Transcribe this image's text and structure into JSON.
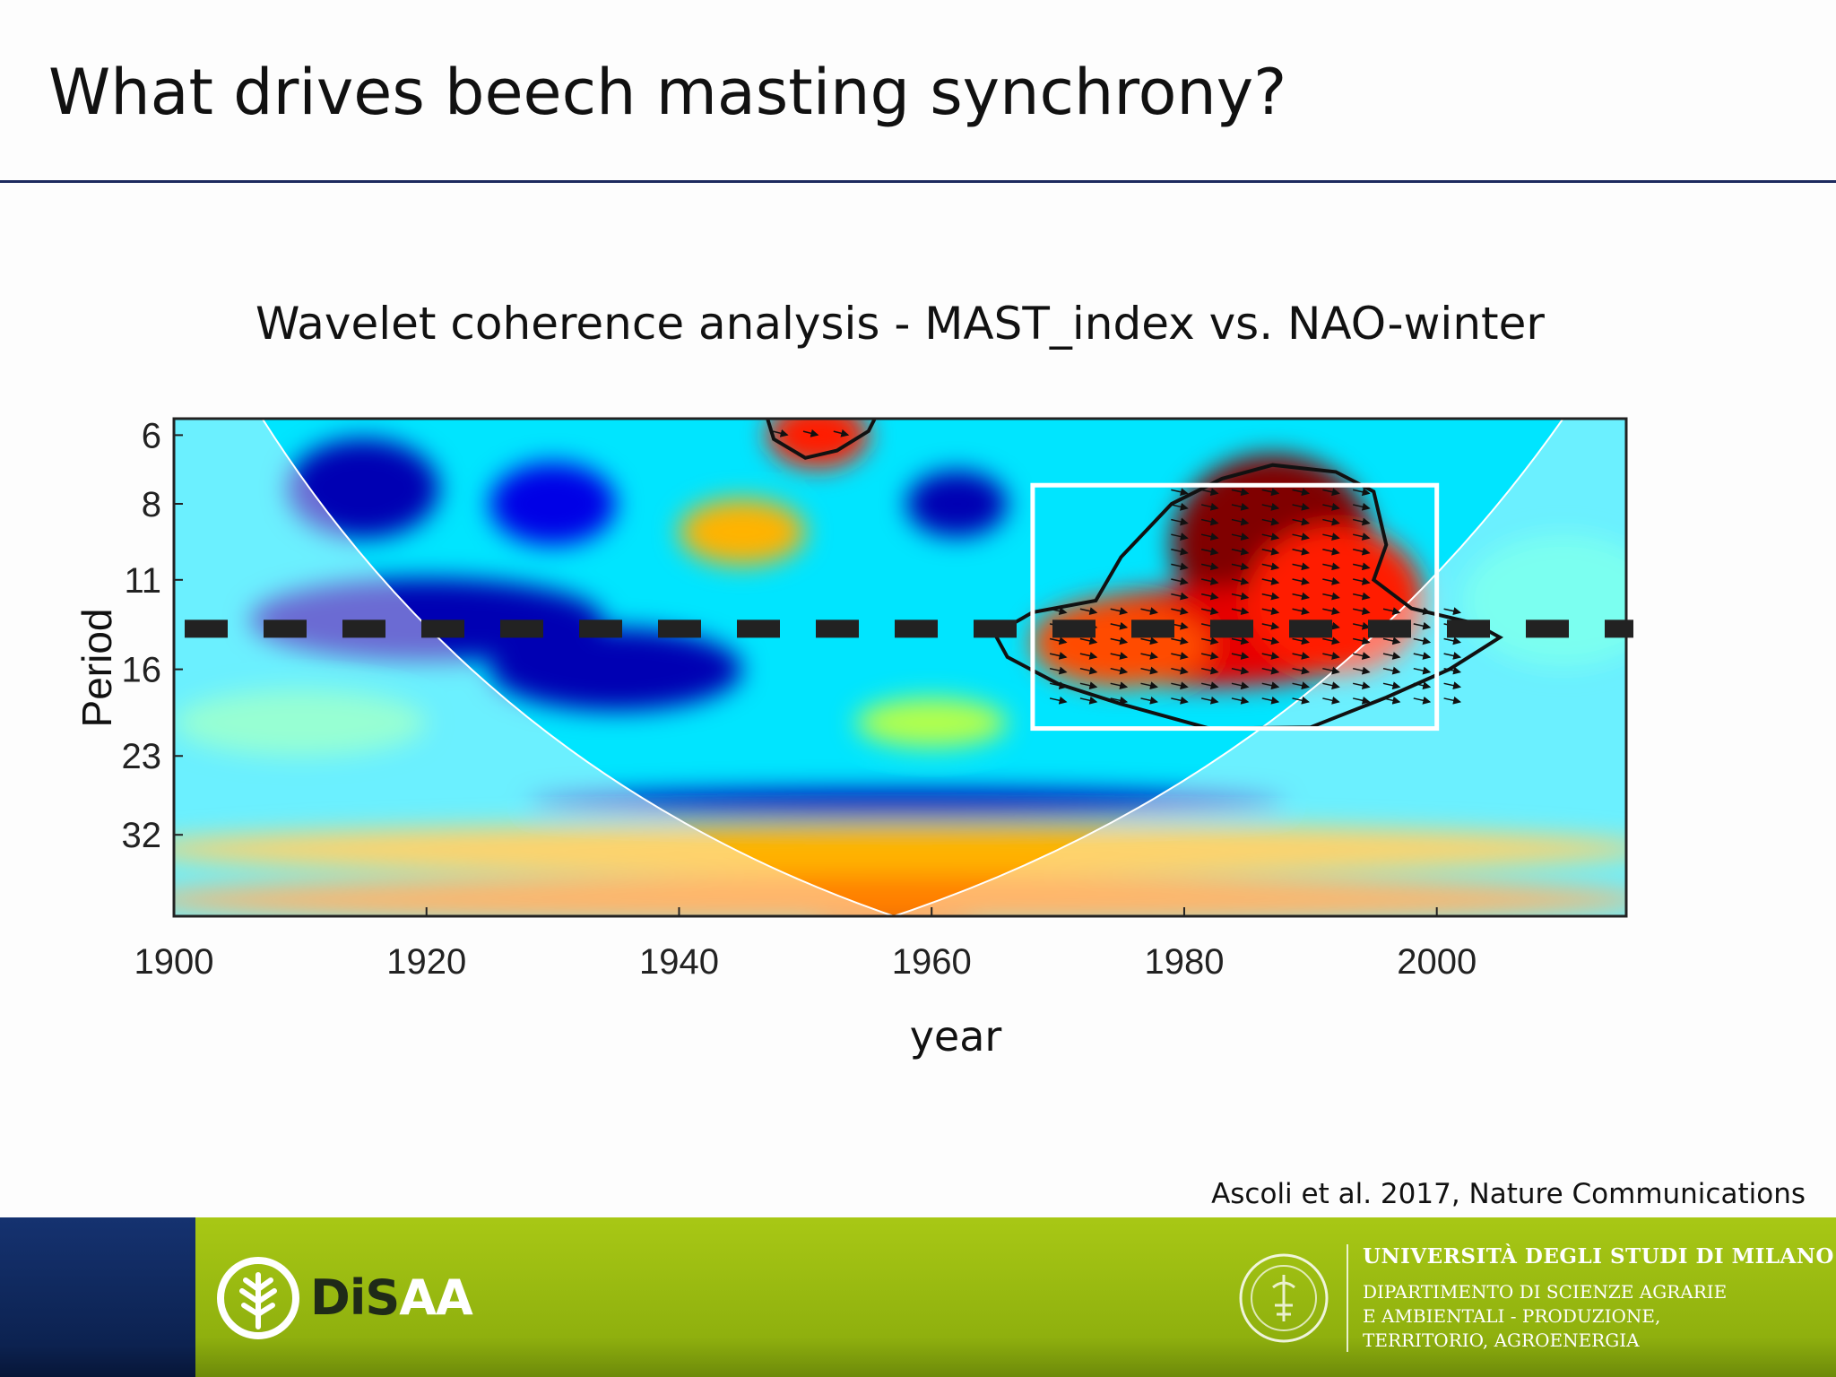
{
  "slide": {
    "title": "What drives beech masting synchrony?",
    "citation": "Ascoli et al. 2017, Nature Communications"
  },
  "chart_data": {
    "type": "heatmap",
    "title": "Wavelet coherence analysis - MAST_index vs. NAO-winter",
    "xlabel": "year",
    "ylabel": "Period",
    "xlim": [
      1900,
      2015
    ],
    "x_ticks": [
      1900,
      1920,
      1940,
      1960,
      1980,
      2000
    ],
    "y_ticks": [
      6,
      8,
      11,
      16,
      23,
      32
    ],
    "y_scale": "log2",
    "ylim": [
      5.6,
      45
    ],
    "colormap": "jet",
    "dashed_reference_period": 13.5,
    "highlight_box": {
      "x_from": 1968,
      "x_to": 2000,
      "period_from": 7.4,
      "period_to": 20.5
    },
    "significant_regions": [
      {
        "x_from": 1965,
        "x_to": 2005,
        "period_from": 7.0,
        "period_to": 20.5,
        "peak_year": 1987,
        "peak_period": 9.5
      },
      {
        "x_from": 1947,
        "x_to": 1955,
        "period_from": 5.6,
        "period_to": 6.6
      }
    ],
    "coherence_blobs": [
      {
        "year": 1987,
        "period": 9.5,
        "coherence": 1.0,
        "ry": 8,
        "rp": 0.55
      },
      {
        "year": 1982,
        "period": 14.0,
        "coherence": 0.9,
        "ry": 14,
        "rp": 0.3
      },
      {
        "year": 1992,
        "period": 12.0,
        "coherence": 0.85,
        "ry": 7,
        "rp": 0.45
      },
      {
        "year": 1975,
        "period": 14.5,
        "coherence": 0.8,
        "ry": 7,
        "rp": 0.25
      },
      {
        "year": 1951,
        "period": 6.0,
        "coherence": 0.85,
        "ry": 4,
        "rp": 0.2
      },
      {
        "year": 1945,
        "period": 9.0,
        "coherence": 0.7,
        "ry": 5,
        "rp": 0.2
      },
      {
        "year": 1957,
        "period": 40.0,
        "coherence": 0.92,
        "ry": 10,
        "rp": 0.3
      },
      {
        "year": 1957,
        "period": 34.0,
        "coherence": 0.7,
        "ry": 60,
        "rp": 0.16
      },
      {
        "year": 1957,
        "period": 42.0,
        "coherence": 0.75,
        "ry": 60,
        "rp": 0.15
      },
      {
        "year": 1915,
        "period": 7.5,
        "coherence": 0.05,
        "ry": 6,
        "rp": 0.3
      },
      {
        "year": 1930,
        "period": 8.0,
        "coherence": 0.1,
        "ry": 5,
        "rp": 0.25
      },
      {
        "year": 1962,
        "period": 8.0,
        "coherence": 0.05,
        "ry": 4,
        "rp": 0.2
      },
      {
        "year": 1920,
        "period": 13.0,
        "coherence": 0.05,
        "ry": 14,
        "rp": 0.25
      },
      {
        "year": 1935,
        "period": 16.0,
        "coherence": 0.05,
        "ry": 10,
        "rp": 0.25
      },
      {
        "year": 1958,
        "period": 28.0,
        "coherence": 0.05,
        "ry": 30,
        "rp": 0.08
      },
      {
        "year": 1960,
        "period": 20.0,
        "coherence": 0.55,
        "ry": 6,
        "rp": 0.15
      },
      {
        "year": 1910,
        "period": 20.0,
        "coherence": 0.45,
        "ry": 10,
        "rp": 0.2
      },
      {
        "year": 2010,
        "period": 12.0,
        "coherence": 0.4,
        "ry": 8,
        "rp": 0.4
      }
    ],
    "background_coherence": 0.35
  },
  "footer": {
    "disaa_dark": "DiS",
    "disaa_light": "AA",
    "university": "UNIVERSITÀ DEGLI STUDI DI MILANO",
    "department_lines": [
      "DIPARTIMENTO DI SCIENZE AGRARIE",
      "E AMBIENTALI - PRODUZIONE,",
      "TERRITORIO, AGROENERGIA"
    ],
    "colors": {
      "band": "#9cbd12",
      "left_block": "#0f2757",
      "title_rule": "#1d2a5e"
    }
  }
}
